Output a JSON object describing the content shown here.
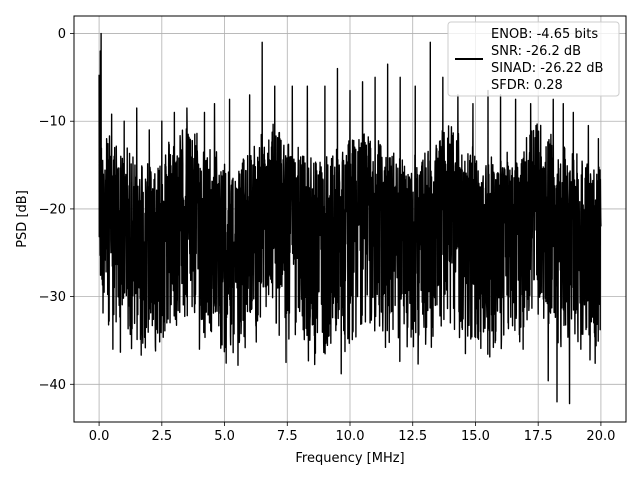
{
  "chart_data": {
    "type": "line",
    "title": "",
    "xlabel": "Frequency [MHz]",
    "ylabel": "PSD [dB]",
    "xlim": [
      -1.0,
      21.0
    ],
    "ylim": [
      -44.3,
      2.0
    ],
    "xticks": [
      0.0,
      2.5,
      5.0,
      7.5,
      10.0,
      12.5,
      15.0,
      17.5,
      20.0
    ],
    "xtick_labels": [
      "0.0",
      "2.5",
      "5.0",
      "7.5",
      "10.0",
      "12.5",
      "15.0",
      "17.5",
      "20.0"
    ],
    "yticks": [
      0,
      -10,
      -20,
      -30,
      -40
    ],
    "ytick_labels": [
      "0",
      "−10",
      "−20",
      "−30",
      "−40"
    ],
    "grid": true,
    "legend": {
      "placement": "top-right",
      "lines": [
        "ENOB: -4.65 bits",
        "SNR: -26.2 dB",
        "SINAD: -26.22 dB",
        "SFDR: 0.28"
      ]
    },
    "series": [
      {
        "color": "#000000",
        "description_of_data": "noise-like power spectral density from 0 to 20 MHz",
        "points": [
          [
            0.0,
            -4.7
          ],
          [
            0.05,
            -2.0
          ],
          [
            0.08,
            0.0
          ],
          [
            0.12,
            -18.0
          ],
          [
            0.2,
            -29.5
          ],
          [
            0.3,
            -12.0
          ],
          [
            0.4,
            -32.8
          ],
          [
            0.5,
            -9.2
          ],
          [
            0.55,
            -36.0
          ],
          [
            0.6,
            -14.0
          ],
          [
            0.8,
            -31.0
          ],
          [
            1.0,
            -10.0
          ],
          [
            1.3,
            -32.0
          ],
          [
            1.5,
            -8.5
          ],
          [
            1.6,
            -29.0
          ],
          [
            2.0,
            -11.0
          ],
          [
            2.2,
            -30.0
          ],
          [
            2.5,
            -10.0
          ],
          [
            2.7,
            -33.0
          ],
          [
            3.0,
            -9.0
          ],
          [
            3.3,
            -28.5
          ],
          [
            3.5,
            -8.5
          ],
          [
            3.8,
            -31.0
          ],
          [
            4.0,
            -36.0
          ],
          [
            4.2,
            -9.0
          ],
          [
            4.4,
            -33.0
          ],
          [
            4.6,
            -8.0
          ],
          [
            4.9,
            -35.5
          ],
          [
            5.2,
            -7.5
          ],
          [
            5.5,
            -29.0
          ],
          [
            6.0,
            -7.0
          ],
          [
            6.3,
            -32.0
          ],
          [
            6.5,
            -1.0
          ],
          [
            6.8,
            -27.5
          ],
          [
            7.0,
            -6.0
          ],
          [
            7.2,
            -29.0
          ],
          [
            7.45,
            -37.5
          ],
          [
            7.7,
            -6.0
          ],
          [
            8.0,
            -30.0
          ],
          [
            8.3,
            -6.0
          ],
          [
            8.6,
            -34.0
          ],
          [
            9.0,
            -6.0
          ],
          [
            9.3,
            -28.0
          ],
          [
            9.5,
            -4.0
          ],
          [
            9.65,
            -38.8
          ],
          [
            10.0,
            -6.5
          ],
          [
            10.3,
            -30.0
          ],
          [
            10.5,
            -5.5
          ],
          [
            10.8,
            -33.0
          ],
          [
            11.0,
            -5.0
          ],
          [
            11.3,
            -32.0
          ],
          [
            11.5,
            -3.5
          ],
          [
            11.8,
            -31.0
          ],
          [
            12.0,
            -5.0
          ],
          [
            12.3,
            -33.5
          ],
          [
            12.6,
            -6.0
          ],
          [
            12.9,
            -32.0
          ],
          [
            13.2,
            -1.0
          ],
          [
            13.4,
            -31.0
          ],
          [
            13.7,
            -5.0
          ],
          [
            14.0,
            -33.0
          ],
          [
            14.3,
            -7.0
          ],
          [
            14.6,
            -36.5
          ],
          [
            14.9,
            -8.0
          ],
          [
            15.2,
            -34.0
          ],
          [
            15.5,
            -6.5
          ],
          [
            15.8,
            -35.0
          ],
          [
            16.0,
            -7.0
          ],
          [
            16.3,
            -33.0
          ],
          [
            16.6,
            -7.5
          ],
          [
            16.9,
            -36.0
          ],
          [
            17.2,
            -8.0
          ],
          [
            17.5,
            -32.0
          ],
          [
            17.9,
            -39.6
          ],
          [
            18.1,
            -7.5
          ],
          [
            18.25,
            -42.0
          ],
          [
            18.5,
            -8.0
          ],
          [
            18.75,
            -42.2
          ],
          [
            18.9,
            -9.0
          ],
          [
            19.2,
            -36.0
          ],
          [
            19.5,
            -10.5
          ],
          [
            19.8,
            -31.0
          ],
          [
            19.9,
            -12.0
          ],
          [
            20.0,
            -22.0
          ]
        ]
      }
    ]
  }
}
